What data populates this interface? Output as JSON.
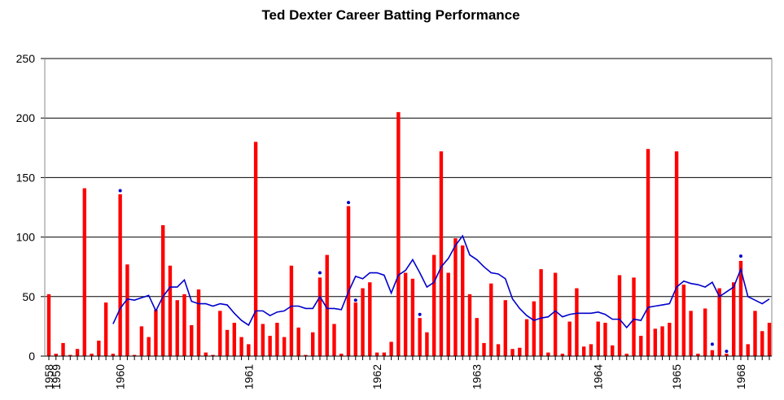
{
  "chart_data": {
    "type": "bar",
    "title": "Ted Dexter Career Batting Performance",
    "categories": [
      "1958",
      "1959",
      null,
      null,
      null,
      null,
      null,
      null,
      null,
      null,
      "1960",
      null,
      null,
      null,
      null,
      null,
      null,
      null,
      null,
      null,
      null,
      null,
      null,
      null,
      null,
      null,
      null,
      null,
      "1961",
      null,
      null,
      null,
      null,
      null,
      null,
      null,
      null,
      null,
      null,
      null,
      null,
      null,
      null,
      null,
      null,
      null,
      "1962",
      null,
      null,
      null,
      null,
      null,
      null,
      null,
      null,
      null,
      null,
      null,
      null,
      null,
      "1963",
      null,
      null,
      null,
      null,
      null,
      null,
      null,
      null,
      null,
      null,
      null,
      null,
      null,
      null,
      null,
      null,
      "1964",
      null,
      null,
      null,
      null,
      null,
      null,
      null,
      null,
      null,
      null,
      "1965",
      null,
      null,
      null,
      null,
      null,
      null,
      null,
      null,
      "1968",
      null,
      null,
      null,
      null
    ],
    "series": [
      {
        "type": "bar",
        "color": "#ff0000",
        "values": [
          52,
          2,
          11,
          1,
          6,
          141,
          2,
          13,
          45,
          2,
          136,
          77,
          1,
          25,
          16,
          39,
          110,
          76,
          47,
          52,
          26,
          56,
          3,
          1,
          38,
          22,
          28,
          16,
          10,
          180,
          27,
          17,
          28,
          16,
          76,
          24,
          1,
          20,
          66,
          85,
          27,
          2,
          126,
          45,
          57,
          62,
          3,
          3,
          12,
          205,
          70,
          65,
          32,
          20,
          85,
          172,
          70,
          99,
          93,
          52,
          32,
          11,
          61,
          10,
          47,
          6,
          7,
          31,
          46,
          73,
          3,
          70,
          2,
          29,
          57,
          8,
          10,
          29,
          28,
          9,
          68,
          2,
          66,
          17,
          174,
          23,
          25,
          28,
          172,
          60,
          38,
          2,
          40,
          5,
          57,
          2,
          62,
          80,
          10,
          38,
          21,
          28
        ]
      },
      {
        "type": "line",
        "color": "#0000cc",
        "values": [
          null,
          null,
          null,
          null,
          null,
          null,
          null,
          null,
          null,
          27,
          40,
          48,
          47,
          49,
          51,
          38,
          50,
          58,
          58,
          64,
          46,
          44,
          44,
          42,
          44,
          43,
          36,
          30,
          26,
          38,
          38,
          34,
          37,
          38,
          42,
          42,
          40,
          40,
          50,
          40,
          40,
          39,
          54,
          67,
          65,
          70,
          70,
          68,
          53,
          68,
          72,
          81,
          70,
          58,
          62,
          75,
          82,
          93,
          101,
          85,
          81,
          75,
          70,
          69,
          65,
          48,
          40,
          34,
          30,
          32,
          33,
          38,
          33,
          35,
          36,
          36,
          36,
          37,
          35,
          31,
          31,
          24,
          31,
          30,
          41,
          42,
          43,
          44,
          58,
          63,
          61,
          60,
          58,
          62,
          50,
          54,
          58,
          73,
          50,
          47,
          44,
          48
        ]
      },
      {
        "type": "scatter",
        "color": "#0000cc",
        "values": [
          null,
          null,
          null,
          null,
          null,
          null,
          null,
          null,
          null,
          null,
          139,
          null,
          null,
          null,
          null,
          null,
          null,
          null,
          null,
          null,
          null,
          null,
          null,
          null,
          null,
          null,
          null,
          null,
          null,
          null,
          null,
          null,
          null,
          null,
          null,
          null,
          null,
          null,
          70,
          null,
          null,
          null,
          129,
          47,
          null,
          null,
          null,
          null,
          null,
          null,
          null,
          null,
          35,
          null,
          null,
          null,
          null,
          null,
          null,
          null,
          null,
          null,
          null,
          null,
          null,
          null,
          null,
          null,
          null,
          null,
          null,
          null,
          null,
          null,
          null,
          null,
          null,
          null,
          null,
          null,
          null,
          null,
          null,
          null,
          null,
          null,
          null,
          null,
          null,
          null,
          null,
          null,
          null,
          10,
          null,
          4,
          null,
          84,
          null,
          null,
          null,
          null
        ]
      }
    ],
    "ylim": [
      0,
      250
    ],
    "yticks": [
      0,
      50,
      100,
      150,
      200,
      250
    ],
    "grid": true
  }
}
